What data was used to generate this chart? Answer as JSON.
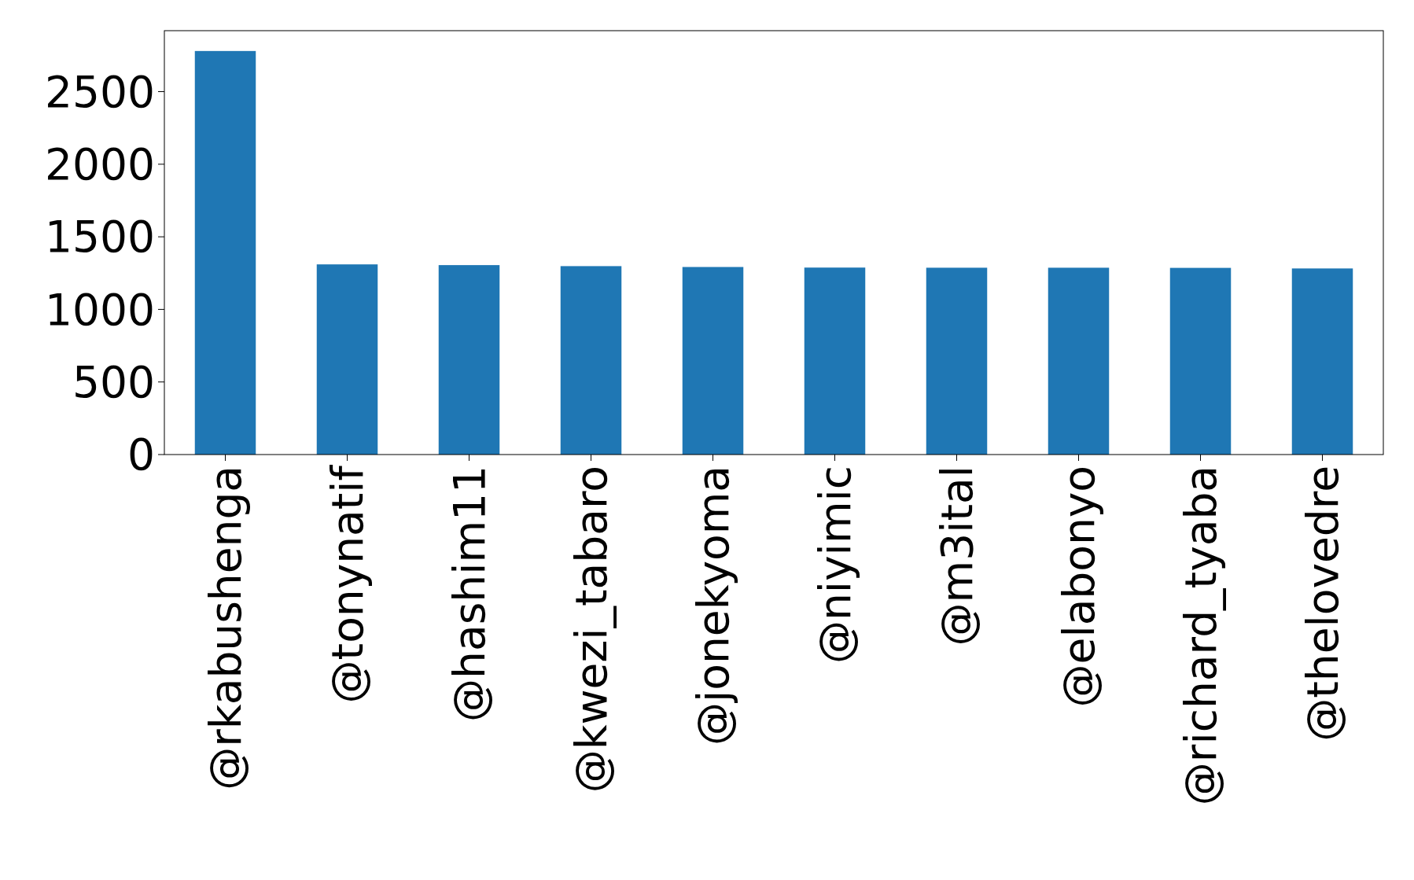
{
  "chart_data": {
    "type": "bar",
    "categories": [
      "@rkabushenga",
      "@tonynatif",
      "@hashim11",
      "@kwezi_tabaro",
      "@jonekyoma",
      "@niyimic",
      "@m3ital",
      "@elabonyo",
      "@richard_tyaba",
      "@thelovedre"
    ],
    "values": [
      2780,
      1310,
      1305,
      1298,
      1292,
      1288,
      1287,
      1287,
      1286,
      1282
    ],
    "color": "#1f77b4",
    "ylim": [
      0,
      2920
    ],
    "yticks": [
      0,
      500,
      1000,
      1500,
      2000,
      2500
    ],
    "grid": false
  }
}
